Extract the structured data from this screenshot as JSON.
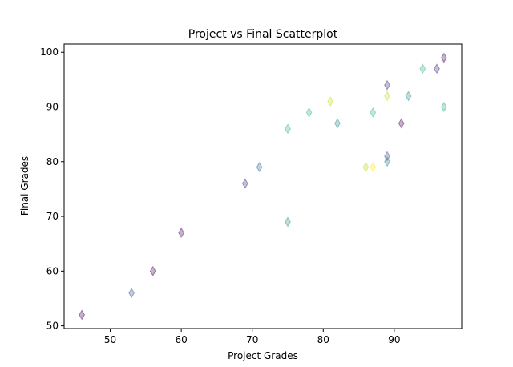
{
  "chart_data": {
    "type": "scatter",
    "title": "Project vs Final Scatterplot",
    "xlabel": "Project Grades",
    "ylabel": "Final Grades",
    "xlim": [
      43.5,
      99.5
    ],
    "ylim": [
      49.5,
      101.5
    ],
    "xticks": [
      50,
      60,
      70,
      80,
      90
    ],
    "yticks": [
      50,
      60,
      70,
      80,
      90,
      100
    ],
    "grid": false,
    "marker": "thin_diamond",
    "points": [
      {
        "x": 46,
        "y": 52,
        "color": "#440154"
      },
      {
        "x": 53,
        "y": 56,
        "color": "#3b528b"
      },
      {
        "x": 56,
        "y": 60,
        "color": "#440154"
      },
      {
        "x": 60,
        "y": 67,
        "color": "#440154"
      },
      {
        "x": 69,
        "y": 76,
        "color": "#482878"
      },
      {
        "x": 71,
        "y": 79,
        "color": "#31688e"
      },
      {
        "x": 75,
        "y": 69,
        "color": "#21918c"
      },
      {
        "x": 75,
        "y": 86,
        "color": "#35b779"
      },
      {
        "x": 78,
        "y": 89,
        "color": "#35b779"
      },
      {
        "x": 81,
        "y": 91,
        "color": "#bddf26"
      },
      {
        "x": 82,
        "y": 87,
        "color": "#21918c"
      },
      {
        "x": 86,
        "y": 79,
        "color": "#b5de2b"
      },
      {
        "x": 87,
        "y": 79,
        "color": "#fde725"
      },
      {
        "x": 87,
        "y": 89,
        "color": "#35b779"
      },
      {
        "x": 89,
        "y": 94,
        "color": "#482878"
      },
      {
        "x": 89,
        "y": 92,
        "color": "#bddf26"
      },
      {
        "x": 89,
        "y": 81,
        "color": "#3b528b"
      },
      {
        "x": 89,
        "y": 80,
        "color": "#26828e"
      },
      {
        "x": 91,
        "y": 87,
        "color": "#440154"
      },
      {
        "x": 92,
        "y": 92,
        "color": "#21918c"
      },
      {
        "x": 94,
        "y": 97,
        "color": "#35b779"
      },
      {
        "x": 96,
        "y": 97,
        "color": "#482878"
      },
      {
        "x": 97,
        "y": 99,
        "color": "#440154"
      },
      {
        "x": 97,
        "y": 90,
        "color": "#22a884"
      }
    ]
  }
}
